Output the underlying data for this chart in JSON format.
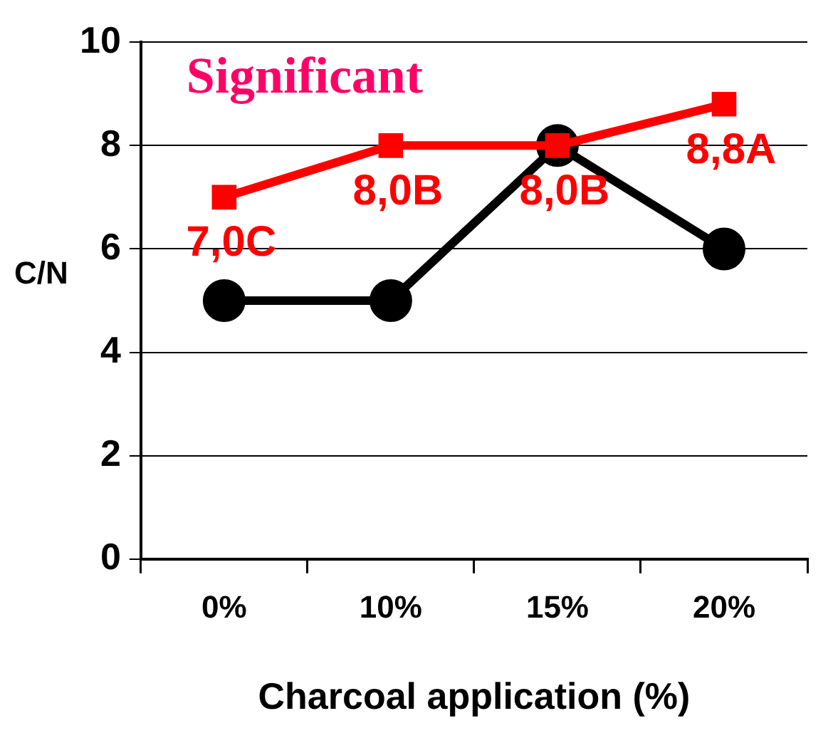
{
  "chart_data": {
    "type": "line",
    "xlabel": "Charcoal application (%)",
    "ylabel": "C/N",
    "categories": [
      "0%",
      "10%",
      "15%",
      "20%"
    ],
    "series": [
      {
        "color": "#ff0000",
        "values": [
          7.0,
          8.0,
          8.0,
          8.8
        ],
        "marker": "square",
        "value_labels": [
          "7,0C",
          "8,0B",
          "8,0B",
          "8,8A"
        ]
      },
      {
        "color": "#000000",
        "values": [
          5,
          5,
          8,
          6
        ],
        "marker": "circle"
      }
    ],
    "ylim": [
      0,
      10
    ],
    "yticks": [
      0,
      2,
      4,
      6,
      8,
      10
    ],
    "grid": "y",
    "legend": false,
    "line_style": "solid",
    "annotations": [
      "Significant"
    ]
  }
}
